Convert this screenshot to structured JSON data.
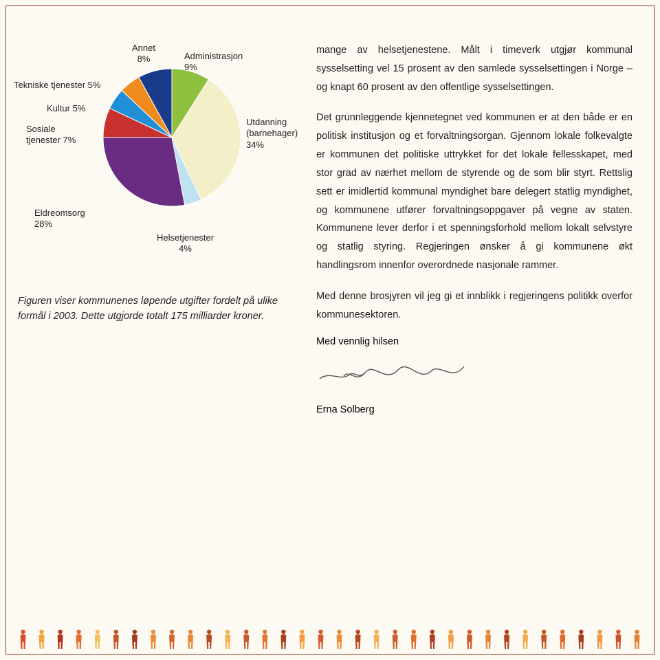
{
  "chart": {
    "type": "pie",
    "slices": [
      {
        "label": "Annet",
        "value": 8,
        "color": "#1a3b8a"
      },
      {
        "label": "Administrasjon",
        "value": 9,
        "color": "#8fbf3f"
      },
      {
        "label": "Utdanning (barnehager)",
        "value": 34,
        "color": "#f3efc8"
      },
      {
        "label": "Helsetjenester",
        "value": 4,
        "color": "#bfe1f2"
      },
      {
        "label": "Eldreomsorg",
        "value": 28,
        "color": "#6a2c82"
      },
      {
        "label": "Sosiale tjenester",
        "value": 7,
        "color": "#c9312e"
      },
      {
        "label": "Kultur",
        "value": 5,
        "color": "#1f8fd6"
      },
      {
        "label": "Tekniske tjenester",
        "value": 5,
        "color": "#f28b1e"
      }
    ],
    "stroke": "#ffffff",
    "stroke_width": 1,
    "radius": 100,
    "label_fontsize": 13,
    "label_color": "#222222",
    "background_color": "#fdfaf3"
  },
  "labels": {
    "annet": {
      "l1": "Annet",
      "l2": "8%"
    },
    "admin": {
      "l1": "Administrasjon",
      "l2": "9%"
    },
    "utdanning": {
      "l1": "Utdanning",
      "l2": "(barnehager)",
      "l3": "34%"
    },
    "helse": {
      "l1": "Helsetjenester",
      "l2": "4%"
    },
    "eldre": {
      "l1": "Eldreomsorg",
      "l2": "28%"
    },
    "sosiale": {
      "l1": "Sosiale",
      "l2": "tjenester 7%"
    },
    "kultur": {
      "l1": "Kultur 5%"
    },
    "tekniske": {
      "l1": "Tekniske tjenester 5%"
    }
  },
  "caption": "Figuren viser kommunenes løpende utgifter fordelt på ulike formål i 2003. Dette utgjorde totalt 175 milliarder kroner.",
  "body": {
    "p1": "mange av helsetjenestene. Målt i timeverk utgjør kommunal sysselsetting vel 15 prosent av den samlede sysselsettingen i Norge – og knapt 60 prosent av den offentlige sysselsettingen.",
    "p2": "Det grunnleggende kjennetegnet ved kommunen er at den både er en politisk institusjon og et forvaltningsorgan. Gjennom lokale folkevalgte er kommunen det politiske uttrykket for det lokale fellesskapet, med stor grad av nærhet mellom de styrende og de som blir styrt. Rettslig sett er imidlertid kommunal myndighet bare delegert statlig myndighet, og kommunene utfører forvaltningsoppgaver på vegne av staten. Kommunene lever derfor i et spenningsforhold mellom lokalt selvstyre og statlig styring. Regjeringen ønsker å gi kommunene økt handlingsrom innenfor overordnede nasjonale rammer.",
    "p3": "Med denne brosjyren vil jeg gi et innblikk i regjeringens politikk overfor kommunesektoren."
  },
  "closing": "Med vennlig hilsen",
  "signature_name": "Erna Solberg",
  "footer_people_colors": [
    "#d94f2a",
    "#f2a33c",
    "#b0341f",
    "#e86b2e",
    "#f5be62",
    "#c0582a",
    "#a63820",
    "#f08a3a",
    "#d26a30",
    "#e2893c",
    "#b84a24",
    "#f3b256",
    "#c75a2a",
    "#e27634",
    "#a94020",
    "#f0a042",
    "#d35c28",
    "#e88c3a",
    "#b74722",
    "#f2b05a",
    "#c8602c",
    "#e07030",
    "#aa3e1e",
    "#f19c44",
    "#d15828",
    "#e68436",
    "#b54420",
    "#f2ac50",
    "#c55a28",
    "#de6c2e",
    "#a83c1c",
    "#ef9840",
    "#cf5426",
    "#e48032"
  ]
}
